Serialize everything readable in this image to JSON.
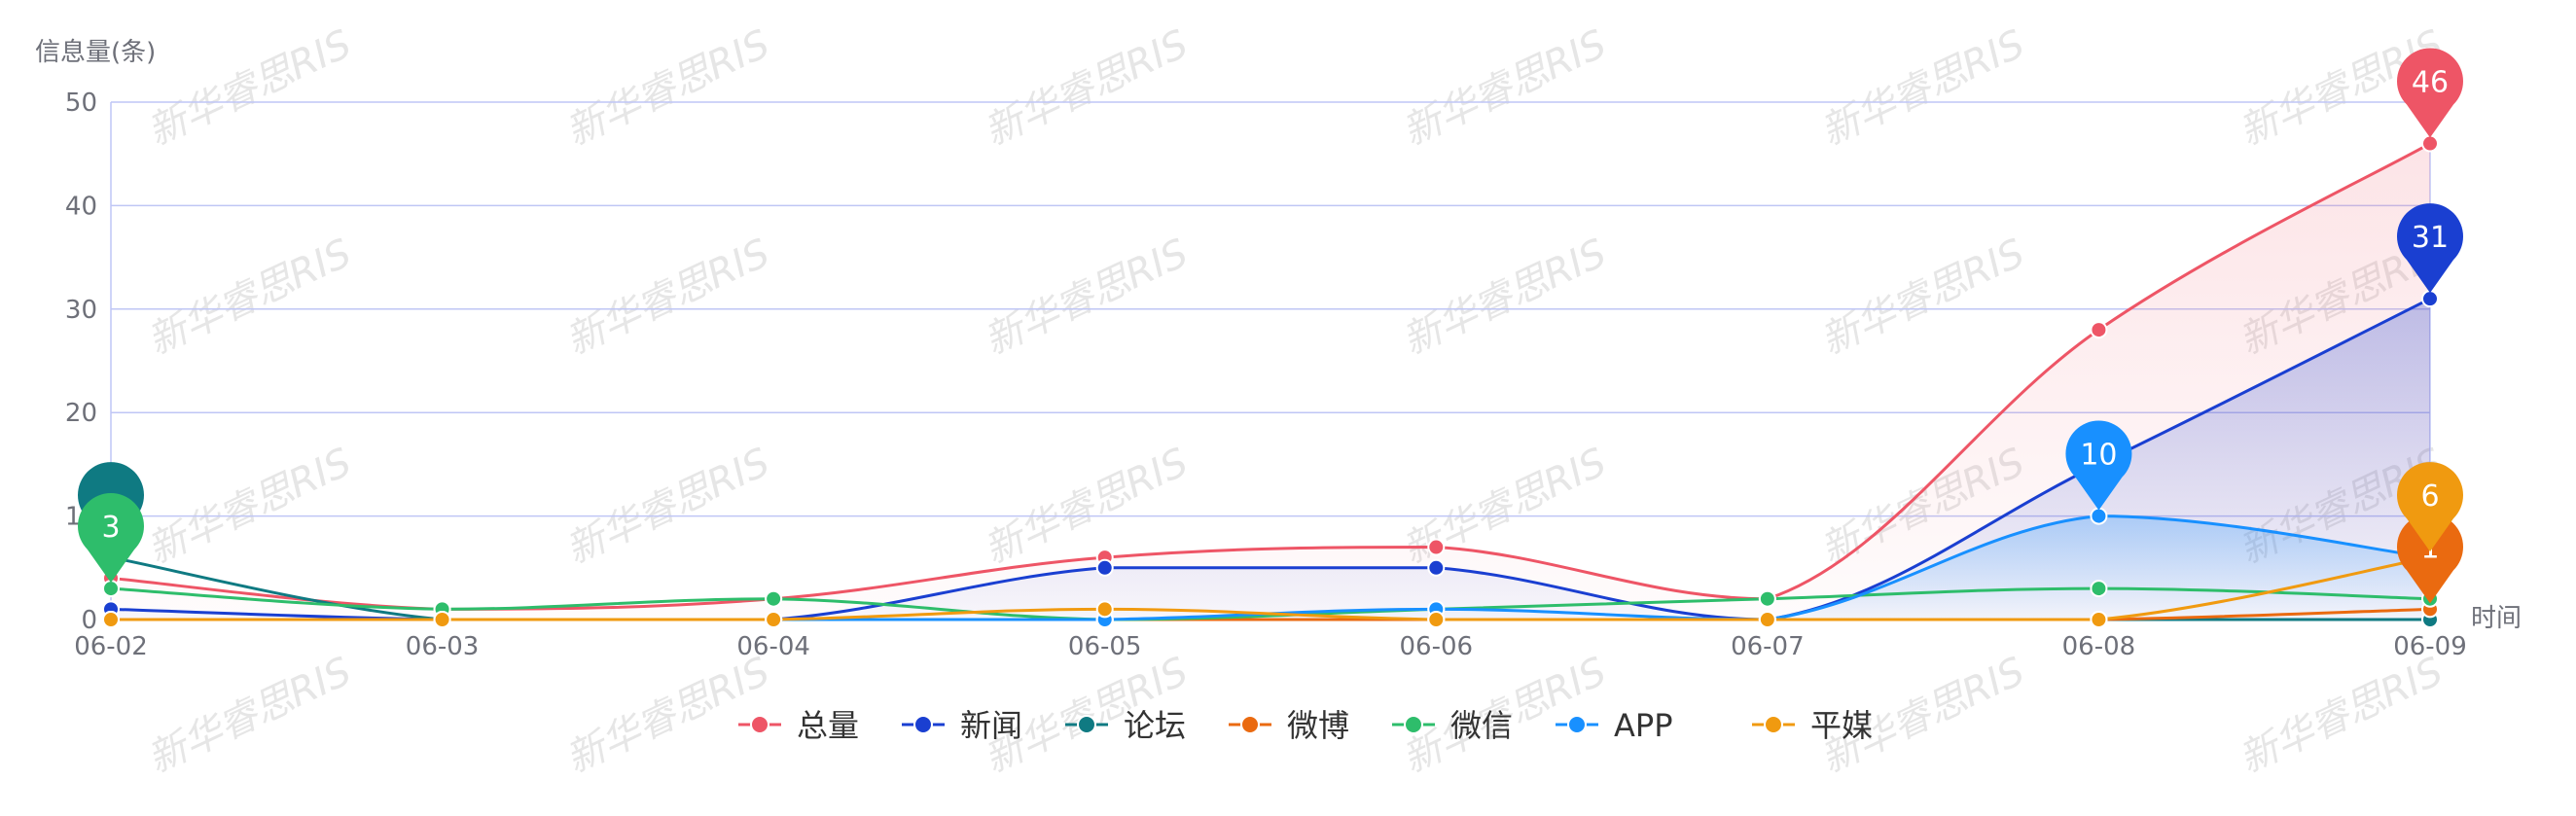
{
  "chart_data": {
    "type": "line",
    "ylabel": "信息量(条)",
    "xlabel": "时间",
    "categories": [
      "06-02",
      "06-03",
      "06-04",
      "06-05",
      "06-06",
      "06-07",
      "06-08",
      "06-09"
    ],
    "ylim": [
      0,
      50
    ],
    "yticks": [
      0,
      10,
      20,
      30,
      40,
      50
    ],
    "grid": true,
    "legend_position": "bottom",
    "watermark": "新华睿思RIS",
    "series": [
      {
        "name": "总量",
        "color": "#ee5566",
        "values": [
          4,
          1,
          2,
          6,
          7,
          2,
          28,
          46
        ],
        "area": true,
        "max_label": "46"
      },
      {
        "name": "新闻",
        "color": "#1a3fd1",
        "values": [
          1,
          0,
          0,
          5,
          5,
          0,
          15,
          31
        ],
        "area": true,
        "max_label": "31"
      },
      {
        "name": "论坛",
        "color": "#0f7a82",
        "values": [
          6,
          0,
          0,
          0,
          0,
          0,
          0,
          0
        ],
        "area": false,
        "max_label": ""
      },
      {
        "name": "微博",
        "color": "#ea6a10",
        "values": [
          0,
          0,
          0,
          0,
          0,
          0,
          0,
          1
        ],
        "area": false,
        "max_label": "1"
      },
      {
        "name": "微信",
        "color": "#2ebd6b",
        "values": [
          3,
          1,
          2,
          0,
          1,
          2,
          3,
          2
        ],
        "area": false,
        "max_label": "3"
      },
      {
        "name": "APP",
        "color": "#1890ff",
        "values": [
          0,
          0,
          0,
          0,
          1,
          0,
          10,
          6
        ],
        "area": true,
        "max_label": "10"
      },
      {
        "name": "平媒",
        "color": "#f09a10",
        "values": [
          0,
          0,
          0,
          1,
          0,
          0,
          0,
          6
        ],
        "area": false,
        "max_label": "6"
      }
    ]
  }
}
